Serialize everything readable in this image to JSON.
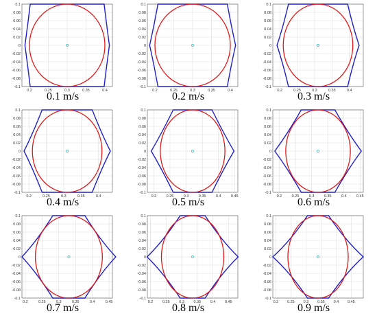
{
  "figure": {
    "colors": {
      "envelope": "#1f1fc8",
      "circle": "#e01818",
      "center": "#39b6b6",
      "grid": "#d9d9d9",
      "axis": "#555555"
    }
  },
  "chart_data": [
    {
      "type": "line",
      "caption": "0.1 m/s",
      "speed": 0.1,
      "center": [
        0.3,
        0
      ],
      "radius": 0.1,
      "xlim": [
        0.18,
        0.42
      ],
      "ylim": [
        -0.1,
        0.1
      ],
      "xticks": [
        0.2,
        0.25,
        0.3,
        0.35,
        0.4
      ],
      "yticks": [
        -0.1,
        -0.08,
        -0.06,
        -0.04,
        -0.02,
        0,
        0.02,
        0.04,
        0.06,
        0.08,
        0.1
      ],
      "envelope": {
        "halfwidth_top": 0.098,
        "side_x_mid": 0.106,
        "side_x_bottom": 0.098,
        "vertex_x": 0.112
      },
      "series": [
        {
          "values": "envelope"
        },
        {
          "values": "circle"
        }
      ]
    },
    {
      "type": "line",
      "caption": "0.2 m/s",
      "speed": 0.2,
      "center": [
        0.3,
        0
      ],
      "radius": 0.1,
      "xlim": [
        0.18,
        0.42
      ],
      "ylim": [
        -0.1,
        0.1
      ],
      "xticks": [
        0.2,
        0.25,
        0.3,
        0.35,
        0.4
      ],
      "yticks": [
        -0.1,
        -0.08,
        -0.06,
        -0.04,
        -0.02,
        0,
        0.02,
        0.04,
        0.06,
        0.08,
        0.1
      ],
      "envelope": {
        "halfwidth_top": 0.092,
        "side_x_mid": 0.104,
        "side_x_bottom": 0.092,
        "vertex_x": 0.114
      },
      "series": [
        {
          "values": "envelope"
        },
        {
          "values": "circle"
        }
      ]
    },
    {
      "type": "line",
      "caption": "0.3 m/s",
      "speed": 0.3,
      "center": [
        0.31,
        0
      ],
      "radius": 0.1,
      "xlim": [
        0.18,
        0.44
      ],
      "ylim": [
        -0.1,
        0.1
      ],
      "xticks": [
        0.2,
        0.25,
        0.3,
        0.35,
        0.4
      ],
      "yticks": [
        -0.1,
        -0.08,
        -0.06,
        -0.04,
        -0.02,
        0,
        0.02,
        0.04,
        0.06,
        0.08,
        0.1
      ],
      "envelope": {
        "halfwidth_top": 0.085,
        "side_x_mid": 0.102,
        "side_x_bottom": 0.085,
        "vertex_x": 0.118
      },
      "series": [
        {
          "values": "envelope"
        },
        {
          "values": "circle"
        }
      ]
    },
    {
      "type": "line",
      "caption": "0.4 m/s",
      "speed": 0.4,
      "center": [
        0.31,
        0
      ],
      "radius": 0.1,
      "xlim": [
        0.18,
        0.44
      ],
      "ylim": [
        -0.1,
        0.1
      ],
      "xticks": [
        0.2,
        0.25,
        0.3,
        0.35,
        0.4
      ],
      "yticks": [
        -0.1,
        -0.08,
        -0.06,
        -0.04,
        -0.02,
        0,
        0.02,
        0.04,
        0.06,
        0.08,
        0.1
      ],
      "envelope": {
        "halfwidth_top": 0.072,
        "side_x_mid": 0.1,
        "side_x_bottom": 0.072,
        "vertex_x": 0.124
      },
      "series": [
        {
          "values": "envelope"
        },
        {
          "values": "circle"
        }
      ]
    },
    {
      "type": "line",
      "caption": "0.5 m/s",
      "speed": 0.5,
      "center": [
        0.32,
        0
      ],
      "radius": 0.1,
      "xlim": [
        0.18,
        0.46
      ],
      "ylim": [
        -0.1,
        0.1
      ],
      "xticks": [
        0.2,
        0.25,
        0.3,
        0.35,
        0.4,
        0.45
      ],
      "yticks": [
        -0.1,
        -0.08,
        -0.06,
        -0.04,
        -0.02,
        0,
        0.02,
        0.04,
        0.06,
        0.08,
        0.1
      ],
      "envelope": {
        "halfwidth_top": 0.06,
        "side_x_mid": 0.098,
        "side_x_bottom": 0.06,
        "vertex_x": 0.128
      },
      "series": [
        {
          "values": "envelope"
        },
        {
          "values": "circle"
        }
      ]
    },
    {
      "type": "line",
      "caption": "0.6 m/s",
      "speed": 0.6,
      "center": [
        0.32,
        0
      ],
      "radius": 0.1,
      "xlim": [
        0.18,
        0.46
      ],
      "ylim": [
        -0.1,
        0.1
      ],
      "xticks": [
        0.2,
        0.25,
        0.3,
        0.35,
        0.4,
        0.45
      ],
      "yticks": [
        -0.1,
        -0.08,
        -0.06,
        -0.04,
        -0.02,
        0,
        0.02,
        0.04,
        0.06,
        0.08,
        0.1
      ],
      "envelope": {
        "halfwidth_top": 0.052,
        "side_x_mid": 0.096,
        "side_x_bottom": 0.052,
        "vertex_x": 0.134
      },
      "series": [
        {
          "values": "envelope"
        },
        {
          "values": "circle"
        }
      ]
    },
    {
      "type": "line",
      "caption": "0.7 m/s",
      "speed": 0.7,
      "center": [
        0.33,
        0
      ],
      "radius": 0.1,
      "xlim": [
        0.19,
        0.46
      ],
      "ylim": [
        -0.1,
        0.1
      ],
      "xticks": [
        0.2,
        0.25,
        0.3,
        0.35,
        0.4,
        0.45
      ],
      "yticks": [
        -0.1,
        -0.08,
        -0.06,
        -0.04,
        -0.02,
        0,
        0.02,
        0.04,
        0.06,
        0.08,
        0.1
      ],
      "envelope": {
        "halfwidth_top": 0.048,
        "side_x_mid": 0.094,
        "side_x_bottom": 0.048,
        "vertex_x": 0.14
      },
      "series": [
        {
          "values": "envelope"
        },
        {
          "values": "circle"
        }
      ]
    },
    {
      "type": "line",
      "caption": "0.8 m/s",
      "speed": 0.8,
      "center": [
        0.335,
        0
      ],
      "radius": 0.1,
      "xlim": [
        0.19,
        0.48
      ],
      "ylim": [
        -0.1,
        0.1
      ],
      "xticks": [
        0.2,
        0.25,
        0.3,
        0.35,
        0.4,
        0.45
      ],
      "yticks": [
        -0.1,
        -0.08,
        -0.06,
        -0.04,
        -0.02,
        0,
        0.02,
        0.04,
        0.06,
        0.08,
        0.1
      ],
      "envelope": {
        "halfwidth_top": 0.04,
        "side_x_mid": 0.092,
        "side_x_bottom": 0.04,
        "vertex_x": 0.146
      },
      "series": [
        {
          "values": "envelope"
        },
        {
          "values": "circle"
        }
      ]
    },
    {
      "type": "line",
      "caption": "0.9 m/s",
      "speed": 0.9,
      "center": [
        0.34,
        0
      ],
      "radius": 0.1,
      "xlim": [
        0.19,
        0.49
      ],
      "ylim": [
        -0.1,
        0.1
      ],
      "xticks": [
        0.2,
        0.25,
        0.3,
        0.35,
        0.4,
        0.45
      ],
      "yticks": [
        -0.1,
        -0.08,
        -0.06,
        -0.04,
        -0.02,
        0,
        0.02,
        0.04,
        0.06,
        0.08,
        0.1
      ],
      "envelope": {
        "halfwidth_top": 0.035,
        "side_x_mid": 0.09,
        "side_x_bottom": 0.035,
        "vertex_x": 0.15
      },
      "series": [
        {
          "values": "envelope"
        },
        {
          "values": "circle"
        }
      ]
    }
  ]
}
